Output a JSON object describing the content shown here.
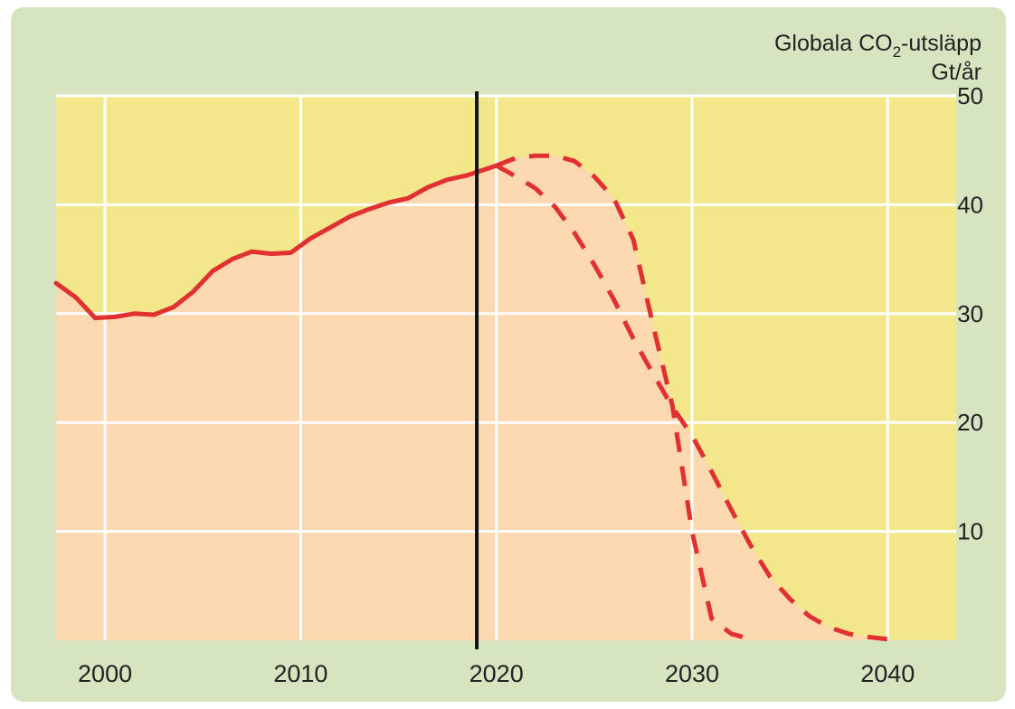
{
  "chart_data": {
    "type": "line",
    "title_parts": {
      "pre": "Globala CO",
      "sub": "2",
      "post": "-utsläpp"
    },
    "unit": "Gt/år",
    "xlim": [
      1997.5,
      2043.5
    ],
    "ylim": [
      0,
      50
    ],
    "x_ticks": [
      2000,
      2010,
      2020,
      2030,
      2040
    ],
    "y_ticks": [
      10,
      20,
      30,
      40,
      50
    ],
    "grid": true,
    "y_axis_side": "right",
    "reference_line_x": 2019,
    "colors": {
      "plot_background": "#f3e78c",
      "fill_under_curve": "#fbd8b0",
      "series": "#e03030",
      "grid": "#ffffff",
      "reference_line": "#111111"
    },
    "series": [
      {
        "style": "solid",
        "points": [
          [
            1997.5,
            32.8
          ],
          [
            1998.5,
            31.5
          ],
          [
            1999.5,
            29.6
          ],
          [
            2000.5,
            29.7
          ],
          [
            2001.5,
            30.0
          ],
          [
            2002.5,
            29.9
          ],
          [
            2003.5,
            30.6
          ],
          [
            2004.5,
            32.0
          ],
          [
            2005.5,
            33.9
          ],
          [
            2006.5,
            35.0
          ],
          [
            2007.5,
            35.7
          ],
          [
            2008.5,
            35.5
          ],
          [
            2009.5,
            35.6
          ],
          [
            2010.5,
            36.9
          ],
          [
            2011.5,
            37.9
          ],
          [
            2012.5,
            38.9
          ],
          [
            2013.5,
            39.6
          ],
          [
            2014.5,
            40.2
          ],
          [
            2015.5,
            40.6
          ],
          [
            2016.5,
            41.6
          ],
          [
            2017.5,
            42.3
          ],
          [
            2018.5,
            42.7
          ],
          [
            2019.5,
            43.3
          ],
          [
            2020,
            43.6
          ]
        ]
      },
      {
        "style": "dashed",
        "points": [
          [
            2020,
            43.6
          ],
          [
            2021,
            44.3
          ],
          [
            2022,
            44.5
          ],
          [
            2023,
            44.5
          ],
          [
            2024,
            44.0
          ],
          [
            2025,
            42.6
          ],
          [
            2026,
            40.6
          ],
          [
            2027,
            36.8
          ],
          [
            2028,
            29.0
          ],
          [
            2029,
            21.5
          ],
          [
            2030,
            10.0
          ],
          [
            2031,
            2.0
          ],
          [
            2032,
            0.6
          ],
          [
            2033,
            0.1
          ]
        ]
      },
      {
        "style": "dashed",
        "points": [
          [
            2020,
            43.6
          ],
          [
            2021,
            42.6
          ],
          [
            2022,
            41.5
          ],
          [
            2023,
            39.8
          ],
          [
            2024,
            37.4
          ],
          [
            2025,
            34.5
          ],
          [
            2026,
            31.3
          ],
          [
            2027,
            27.7
          ],
          [
            2028,
            24.5
          ],
          [
            2029,
            21.4
          ],
          [
            2030,
            18.8
          ],
          [
            2031,
            15.5
          ],
          [
            2032,
            12.0
          ],
          [
            2033,
            8.7
          ],
          [
            2034,
            5.8
          ],
          [
            2035,
            3.8
          ],
          [
            2036,
            2.2
          ],
          [
            2037,
            1.2
          ],
          [
            2038,
            0.6
          ],
          [
            2039,
            0.3
          ],
          [
            2040,
            0.1
          ]
        ]
      }
    ]
  }
}
